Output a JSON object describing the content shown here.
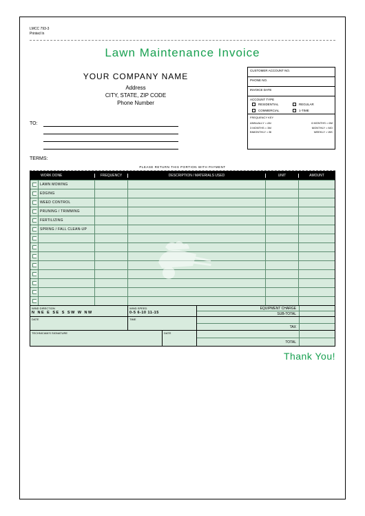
{
  "colors": {
    "accent": "#18a050",
    "tableFill": "#d8ebde",
    "tableLine": "#5a8a6e"
  },
  "form": {
    "code": "LMCC 793-3",
    "printed": "Printed In"
  },
  "title": "Lawn Maintenance Invoice",
  "company": {
    "name": "YOUR COMPANY NAME",
    "address": "Address",
    "csz": "CITY, STATE, ZIP CODE",
    "phone": "Phone Number"
  },
  "infobox": {
    "acct": "CUSTOMER ACCOUNT NO.",
    "phone": "PHONE NO.",
    "invdate": "INVOICE DATE",
    "accttype": "ACCOUNT TYPE",
    "residential": "RESIDENTIAL",
    "regular": "REGULAR",
    "commercial": "COMMERCIAL",
    "onetime": "1-TIME",
    "freqkey": "FREQUENCY KEY",
    "fk": [
      [
        "ANNUALLY = AN",
        "6 MONTHS = 6M"
      ],
      [
        "3 MONTHS = 3M",
        "MONTHLY = MO"
      ],
      [
        "BIMONTHLY = BI",
        "WEEKLY = WK"
      ]
    ]
  },
  "to": "TO:",
  "terms": "TERMS:",
  "returnLine": "PLEASE RETURN THIS PORTION WITH PAYMENT",
  "grid": {
    "headers": {
      "work": "WORK DONE",
      "freq": "FREQUENCY",
      "desc": "DESCRIPTION / MATERIALS USED",
      "unit": "UNIT",
      "amount": "AMOUNT"
    },
    "rows": [
      "LAWN MOWING",
      "EDGING",
      "WEED CONTROL",
      "PRUNING / TRIMMING",
      "FERTILIZING",
      "SPRING / FALL CLEAN-UP",
      "",
      "",
      "",
      "",
      "",
      "",
      "",
      ""
    ]
  },
  "wind": {
    "dirLabel": "WIND DIRECTION",
    "dirs": "N   NE   E   SE   S   SW   W   NW",
    "spdLabel": "WIND SPEED",
    "spds": "0-5   6-10   11-15"
  },
  "dt": {
    "date": "DATE",
    "time": "TIME"
  },
  "sig": {
    "tech": "TECHNICIAN'S SIGNATURE",
    "date": "DATE"
  },
  "totals": {
    "equip": "EQUIPMENT CHARGE",
    "subtotal": "SUB-TOTAL",
    "blank": "",
    "tax": "TAX",
    "total": "TOTAL"
  },
  "thanks": "Thank You!"
}
